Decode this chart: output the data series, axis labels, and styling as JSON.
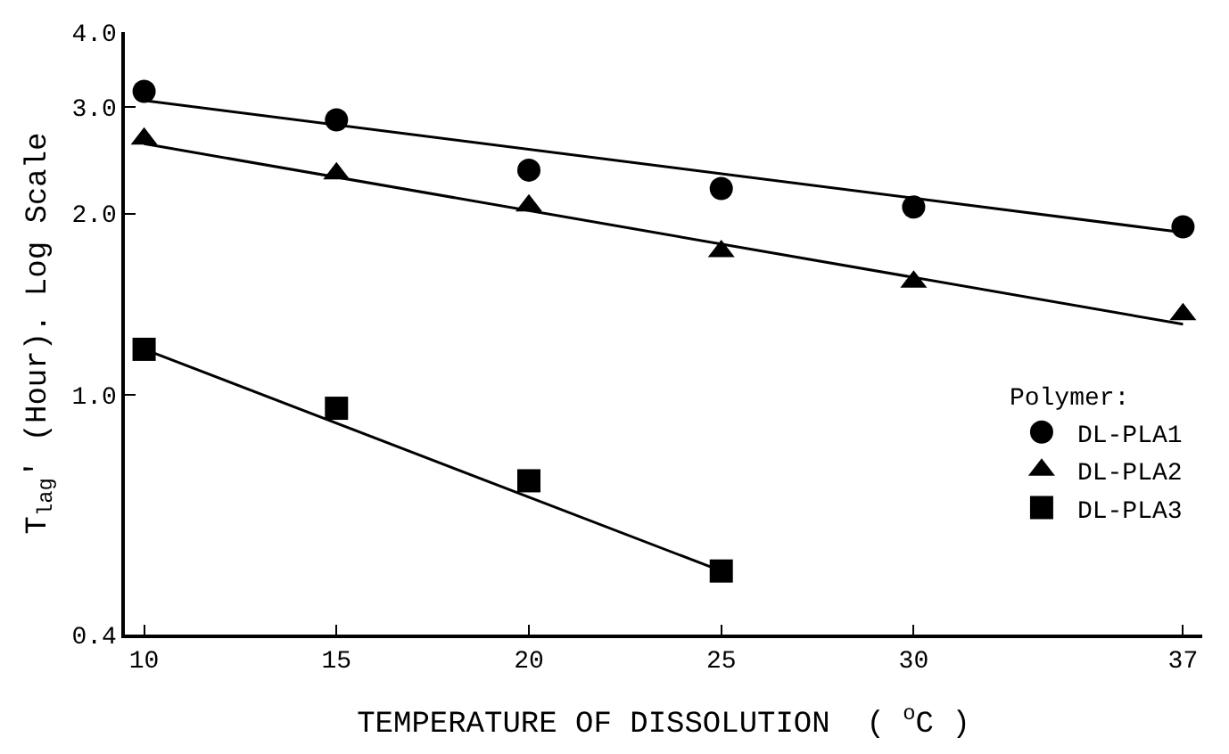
{
  "chart_data": {
    "type": "scatter",
    "xlabel": "TEMPERATURE OF DISSOLUTION  ( $^{o}$C )",
    "ylabel": "T$_{lag}$' (Hour). Log Scale",
    "legend_title": "Polymer:",
    "x": [
      10,
      15,
      20,
      25,
      30,
      37
    ],
    "series": [
      {
        "name": "DL-PLA1",
        "color": "#000000",
        "marker": "circle",
        "values": [
          3.19,
          2.86,
          2.36,
          2.2,
          2.05,
          1.9
        ]
      },
      {
        "name": "DL-PLA2",
        "color": "#000000",
        "marker": "triangle",
        "values": [
          2.66,
          2.33,
          2.06,
          1.73,
          1.54,
          1.36
        ]
      },
      {
        "name": "DL-PLA3",
        "color": "#000000",
        "marker": "square",
        "x": [
          10,
          15,
          20,
          25
        ],
        "values": [
          1.19,
          0.95,
          0.72,
          0.51
        ]
      },
      {
        "type": "line",
        "color": "#000000",
        "marker": "none",
        "line_style": "solid",
        "x": [
          10,
          37
        ],
        "values": [
          3.08,
          1.86
        ]
      },
      {
        "type": "line",
        "color": "#000000",
        "marker": "none",
        "line_style": "solid",
        "x": [
          10,
          37
        ],
        "values": [
          2.61,
          1.31
        ]
      },
      {
        "type": "line",
        "color": "#000000",
        "marker": "none",
        "line_style": "solid",
        "x": [
          10,
          25
        ],
        "values": [
          1.19,
          0.51
        ]
      }
    ],
    "log": "y",
    "xlim": [
      9.5,
      37.5
    ],
    "xticks": [
      10,
      15,
      20,
      25,
      30,
      37
    ],
    "ylim": [
      0.4,
      4.0
    ],
    "yticks": [
      {
        "value": 0.4,
        "label": "0.4"
      },
      {
        "value": 1,
        "label": "1.0"
      },
      {
        "value": 2,
        "label": "2.0"
      },
      {
        "value": 3,
        "label": "3.0"
      },
      {
        "value": 4,
        "label": "4.0"
      }
    ],
    "legend": "right"
  }
}
